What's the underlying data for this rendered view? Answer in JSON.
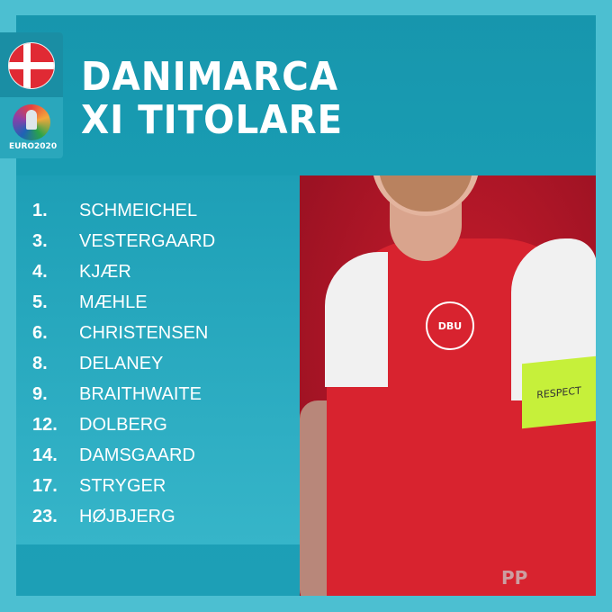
{
  "header": {
    "title_line1": "DANIMARCA",
    "title_line2": "XI TITOLARE"
  },
  "badges": {
    "flag": "denmark-flag",
    "tournament_logo": "EURO2020"
  },
  "lineup": [
    {
      "number": "1.",
      "name": "SCHMEICHEL"
    },
    {
      "number": "3.",
      "name": "VESTERGAARD"
    },
    {
      "number": "4.",
      "name": "KJÆR"
    },
    {
      "number": "5.",
      "name": "MÆHLE"
    },
    {
      "number": "6.",
      "name": "CHRISTENSEN"
    },
    {
      "number": "8.",
      "name": "DELANEY"
    },
    {
      "number": "9.",
      "name": "BRAITHWAITE"
    },
    {
      "number": "12.",
      "name": "DOLBERG"
    },
    {
      "number": "14.",
      "name": "DAMSGAARD"
    },
    {
      "number": "17.",
      "name": "STRYGER"
    },
    {
      "number": "23.",
      "name": "HØJBJERG"
    }
  ],
  "photo": {
    "armband_text": "RESPECT",
    "crest_text": "DBU"
  },
  "watermark": "PP",
  "colors": {
    "background": "#4cbfd1",
    "panel": "#1a9fb5",
    "photo_bg": "#b0182a",
    "shirt": "#d8232f",
    "armband": "#c6f03a"
  }
}
